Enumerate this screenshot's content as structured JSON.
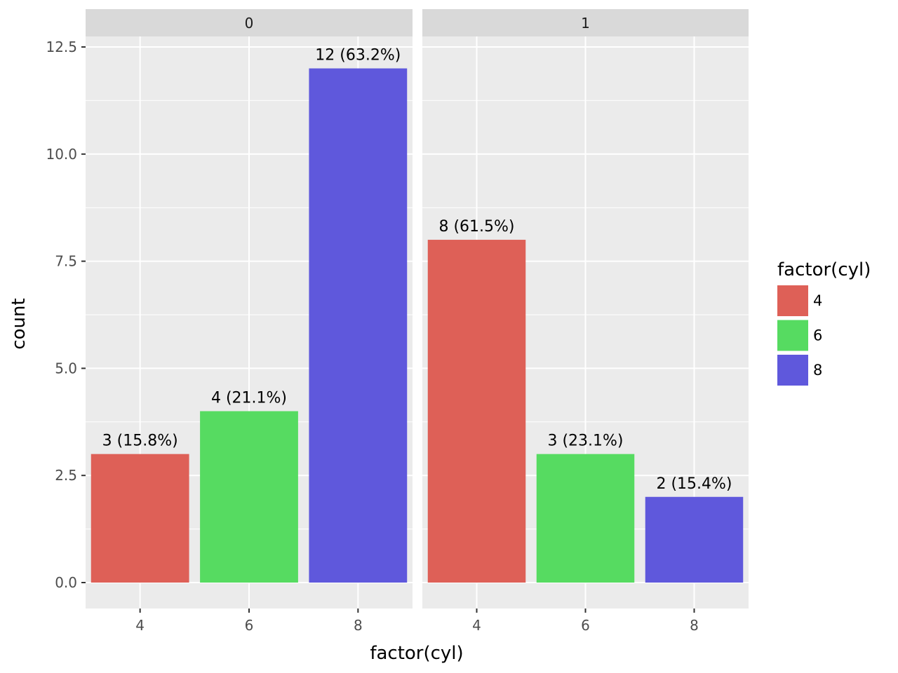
{
  "chart_data": {
    "type": "bar",
    "facet_variable": "",
    "xlabel": "factor(cyl)",
    "ylabel": "count",
    "ylim": [
      -0.6,
      12.5
    ],
    "y_ticks": [
      "0.0",
      "2.5",
      "5.0",
      "7.5",
      "10.0",
      "12.5"
    ],
    "categories": [
      "4",
      "6",
      "8"
    ],
    "legend": {
      "title": "factor(cyl)",
      "placement": "right",
      "entries": [
        "4",
        "6",
        "8"
      ]
    },
    "colors": {
      "4": "#DE6057",
      "6": "#56DB61",
      "8": "#5F58DC"
    },
    "panel_background": "#EBEBEB",
    "strip_background": "#D9D9D9",
    "grid": true,
    "facets": [
      {
        "strip_label": "0",
        "values": [
          3,
          4,
          12
        ],
        "labels": [
          "3 (15.8%)",
          "4 (21.1%)",
          "12 (63.2%)"
        ]
      },
      {
        "strip_label": "1",
        "values": [
          8,
          3,
          2
        ],
        "labels": [
          "8 (61.5%)",
          "3 (23.1%)",
          "2 (15.4%)"
        ]
      }
    ]
  }
}
